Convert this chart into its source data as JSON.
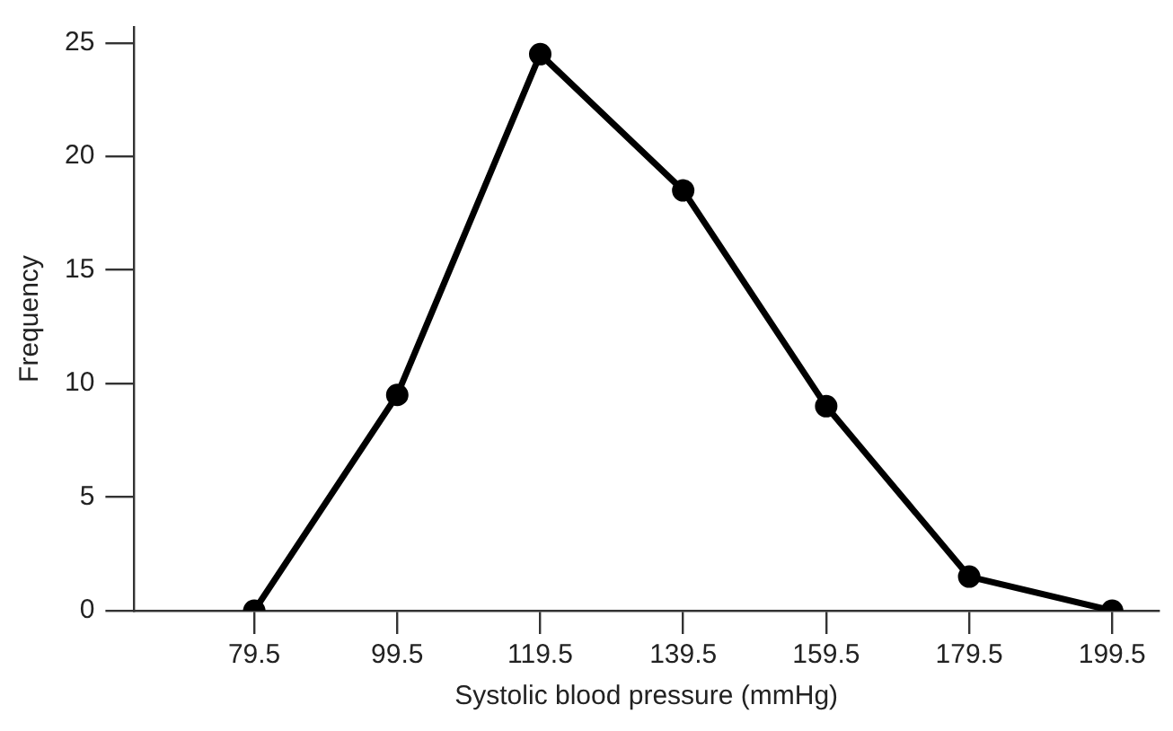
{
  "chart_data": {
    "type": "line",
    "xlabel": "Systolic blood pressure (mmHg)",
    "ylabel": "Frequency",
    "x": [
      79.5,
      99.5,
      119.5,
      139.5,
      159.5,
      179.5,
      199.5
    ],
    "series": [
      {
        "color": "#000000",
        "values": [
          0,
          9.5,
          24.5,
          18.5,
          9,
          1.5,
          0
        ]
      }
    ],
    "xlim": [
      62.7,
      206
    ],
    "xticks": [
      79.5,
      99.5,
      119.5,
      139.5,
      159.5,
      179.5,
      199.5
    ],
    "ylim": [
      0,
      25.7
    ],
    "yticks": [
      0,
      5,
      10,
      15,
      20,
      25
    ],
    "grid": false,
    "legend": false,
    "marker": "circle",
    "line_style": "solid"
  }
}
